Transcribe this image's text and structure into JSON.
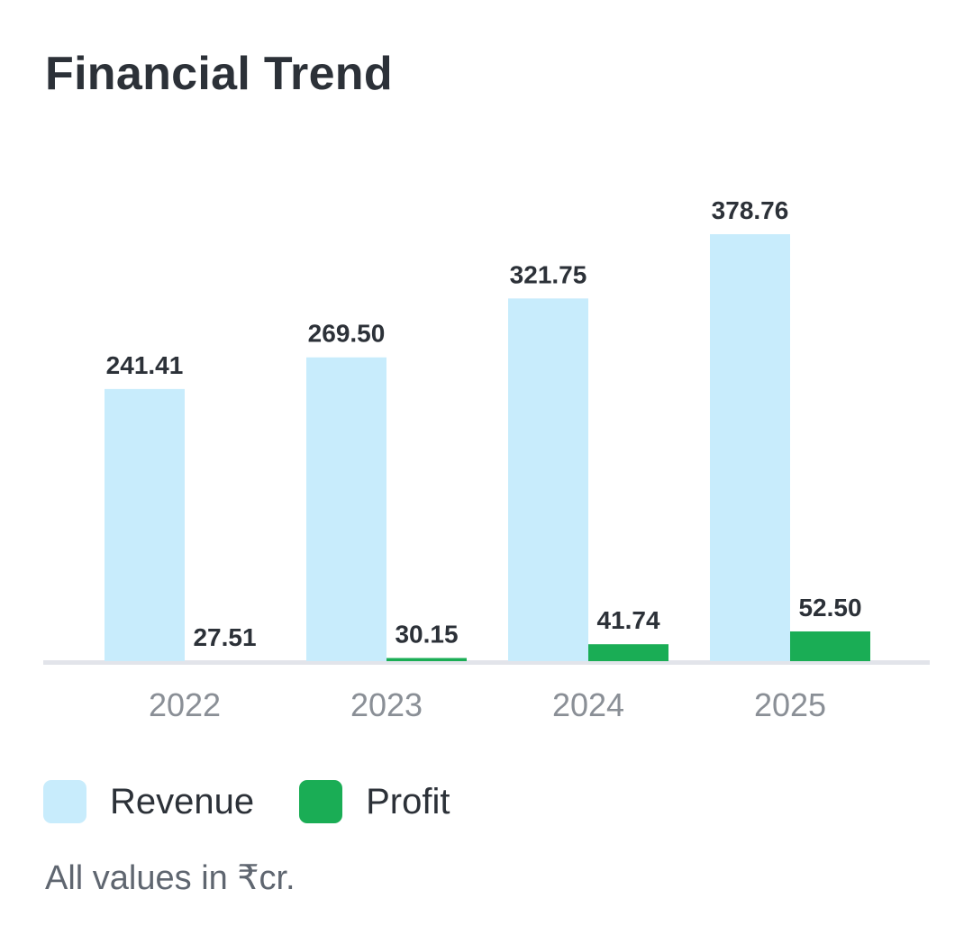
{
  "title": "Financial Trend",
  "footnote": "All values in ₹cr.",
  "legend": {
    "revenue_label": "Revenue",
    "profit_label": "Profit"
  },
  "colors": {
    "revenue": "#c8ecfc",
    "profit": "#1aad55",
    "axis": "#e2e4ea",
    "tick_text": "#8a8f96",
    "value_text": "#2c3138"
  },
  "chart_data": {
    "type": "bar",
    "categories": [
      "2022",
      "2023",
      "2024",
      "2025"
    ],
    "series": [
      {
        "name": "Revenue",
        "values": [
          241.41,
          269.5,
          321.75,
          378.76
        ],
        "labels": [
          "241.41",
          "269.50",
          "321.75",
          "378.76"
        ]
      },
      {
        "name": "Profit",
        "values": [
          27.51,
          30.15,
          41.74,
          52.5
        ],
        "labels": [
          "27.51",
          "30.15",
          "41.74",
          "52.50"
        ]
      }
    ],
    "grid": false,
    "legend_position": "bottom-left",
    "notes": "Profit bars appear scaled relative to their own minimum (27.51 renders near zero height)."
  }
}
